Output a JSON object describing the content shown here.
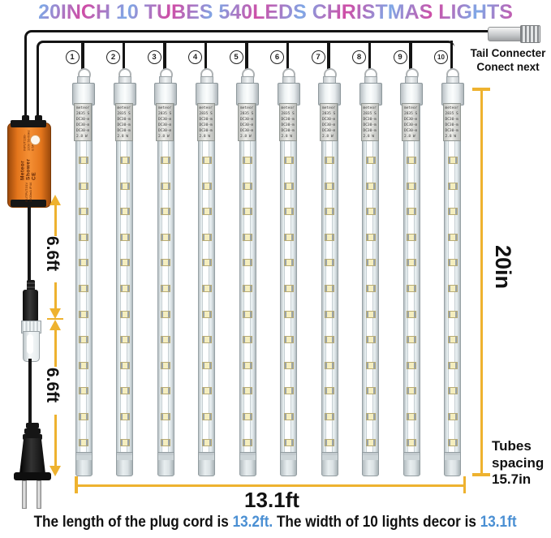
{
  "title": "20INCH 10 TUBES 540LEDS CHRISTMAS LIGHTS",
  "colors": {
    "dimension_yellow": "#eeb22f",
    "title_pink": "#cf4da6",
    "title_blue": "#7fa8e6",
    "footer_blue": "#4a8fd3",
    "adapter_orange": "#e4761c"
  },
  "tail_connector": {
    "line1": "Tail Connecter",
    "line2": "Conect next"
  },
  "tubes": {
    "count": 10,
    "numbers": [
      "1",
      "2",
      "3",
      "4",
      "5",
      "6",
      "7",
      "8",
      "9",
      "10"
    ],
    "label_lines": [
      "meteor",
      "2835 S",
      "DC30-m",
      "DC30-m",
      "DC30-m",
      "2.8 W"
    ],
    "leds_per_tube": 12
  },
  "adapter": {
    "line_small_left": "OUTPUT:31V 1200mA IP44",
    "line_big": "Meteor Shower CE",
    "line_small_right": "INPUT:100-120V 50-60Hz 0.5A"
  },
  "dimensions": {
    "cord_segment1": "6.6ft",
    "cord_segment2": "6.6ft",
    "width": "13.1ft",
    "tube_length": "20in",
    "spacing_line1": "Tubes",
    "spacing_line2": "spacing",
    "spacing_line3": "15.7in"
  },
  "footer": {
    "part1": "The length of the plug cord is ",
    "value1": "13.2ft.",
    "part2": " The width of 10 lights decor is ",
    "value2": "13.1ft"
  }
}
